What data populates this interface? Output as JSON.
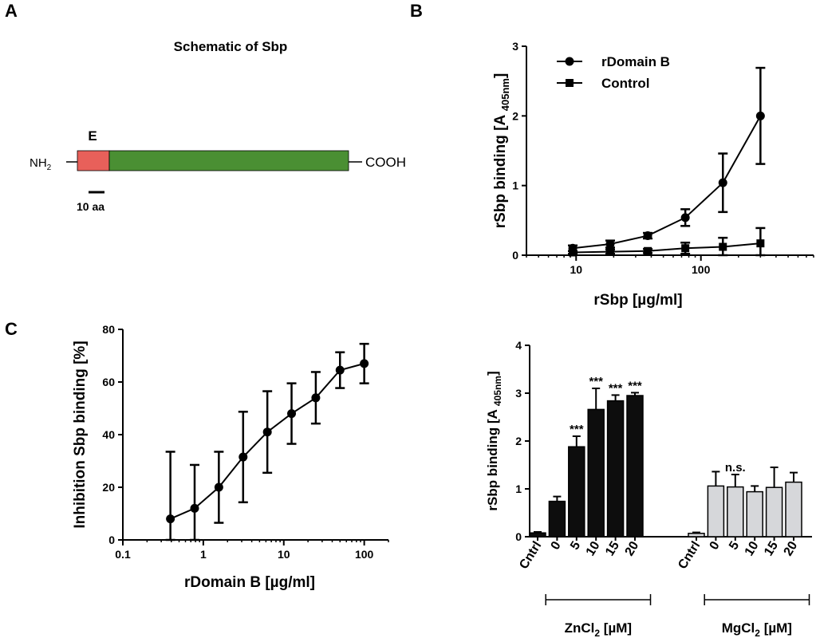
{
  "panels": {
    "a": "A",
    "b": "B",
    "c": "C"
  },
  "schematic": {
    "title": "Schematic of Sbp",
    "n_term": "NH",
    "n_term_sub": "2",
    "c_term": "COOH",
    "domain_label": "E",
    "scale_label": "10 aa",
    "colors": {
      "domain_e": "#e8605a",
      "body": "#4a8f33"
    }
  },
  "chart_data": [
    {
      "id": "B",
      "type": "line",
      "xscale": "log",
      "xlabel": "rSbp [µg/ml]",
      "ylabel_main": "rSbp binding [A ",
      "ylabel_sub": "405nm",
      "ylabel_close": "]",
      "xlim": [
        4,
        800
      ],
      "ylim": [
        0,
        3
      ],
      "xticks": [
        10,
        100
      ],
      "yticks": [
        0,
        1,
        2,
        3
      ],
      "legend": "top-left",
      "series": [
        {
          "name": "rDomain B",
          "marker": "circle",
          "x": [
            9.4,
            18.75,
            37.5,
            75,
            150,
            300
          ],
          "y": [
            0.1,
            0.16,
            0.28,
            0.54,
            1.04,
            2.0
          ],
          "err": [
            0.04,
            0.05,
            0.04,
            0.12,
            0.42,
            0.69
          ]
        },
        {
          "name": "Control",
          "marker": "square",
          "x": [
            9.4,
            18.75,
            37.5,
            75,
            150,
            300
          ],
          "y": [
            0.04,
            0.05,
            0.06,
            0.1,
            0.12,
            0.17
          ],
          "err": [
            0.02,
            0.03,
            0.03,
            0.08,
            0.13,
            0.22
          ]
        }
      ]
    },
    {
      "id": "C",
      "type": "line",
      "xscale": "log",
      "xlabel": "rDomain B [µg/ml]",
      "ylabel": "Inhibition Sbp binding [%]",
      "xlim": [
        0.1,
        200
      ],
      "ylim": [
        0,
        80
      ],
      "xticks": [
        0.1,
        1,
        10,
        100
      ],
      "xtick_labels": [
        "0.1",
        "1",
        "10",
        "100"
      ],
      "yticks": [
        0,
        20,
        40,
        60,
        80
      ],
      "series": [
        {
          "name": "",
          "x": [
            0.39,
            0.78,
            1.56,
            3.125,
            6.25,
            12.5,
            25,
            50,
            100
          ],
          "y": [
            8,
            12,
            20,
            31.5,
            41,
            48,
            54,
            64.5,
            67
          ],
          "err": [
            25.5,
            16.5,
            13.5,
            17.2,
            15.5,
            11.5,
            9.8,
            6.8,
            7.5
          ]
        }
      ]
    },
    {
      "id": "D",
      "type": "bar",
      "ylabel_main": "rSbp binding [A ",
      "ylabel_sub": "405nm",
      "ylabel_close": "]",
      "ylim": [
        0,
        4
      ],
      "yticks": [
        0,
        1,
        2,
        3,
        4
      ],
      "groups": [
        {
          "name": "ZnCl",
          "name_sub": "2",
          "name_unit": " [µM]",
          "color": "#0d0d0d",
          "categories": [
            "Cntrl",
            "0",
            "5",
            "10",
            "15",
            "20"
          ],
          "values": [
            0.08,
            0.74,
            1.88,
            2.66,
            2.84,
            2.95
          ],
          "err": [
            0.02,
            0.1,
            0.22,
            0.44,
            0.12,
            0.06
          ],
          "labels": [
            "",
            "",
            "***",
            "***",
            "***",
            "***"
          ]
        },
        {
          "name": "MgCl",
          "name_sub": "2",
          "name_unit": " [µM]",
          "color": "#d6d7da",
          "categories": [
            "Cntrl",
            "0",
            "5",
            "10",
            "15",
            "20"
          ],
          "values": [
            0.07,
            1.06,
            1.04,
            0.94,
            1.03,
            1.14
          ],
          "err": [
            0.02,
            0.3,
            0.26,
            0.12,
            0.42,
            0.2
          ],
          "labels": [
            "",
            "",
            "n.s.",
            "",
            "",
            ""
          ]
        }
      ]
    }
  ]
}
